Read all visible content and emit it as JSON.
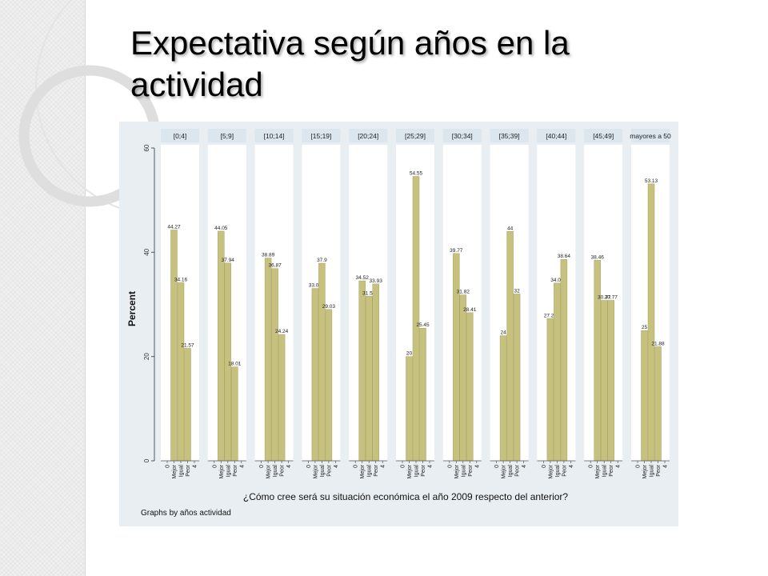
{
  "slide": {
    "title_line1": "Expectativa según años en la",
    "title_line2": "actividad"
  },
  "colors": {
    "chart_background": "#e8eef2",
    "bar": "#c7c17f",
    "bar_edge": "#a8a360",
    "panel_background": "#ffffff",
    "strip_background": "#dce6ee",
    "grid": "#e6ecf0"
  },
  "chart_data": {
    "type": "bar",
    "ylabel": "Percent",
    "xlabel": "¿Cómo cree será su situación económica el año 2009 respecto del anterior?",
    "note": "Graphs by años actividad",
    "ylim": [
      0,
      60
    ],
    "yticks": [
      0,
      20,
      40,
      60
    ],
    "categories": [
      "0",
      "Mejor",
      "Igual",
      "Peor",
      "4"
    ],
    "grid": false,
    "panels": [
      {
        "label": "[0;4]",
        "values": [
          null,
          44.27,
          34.16,
          21.57,
          null
        ],
        "labels": [
          "",
          "44.27",
          "34.16",
          "21.57",
          ""
        ]
      },
      {
        "label": "[5;9]",
        "values": [
          null,
          44.05,
          37.94,
          18.01,
          null
        ],
        "labels": [
          "",
          "44.05",
          "37.94",
          "18.01",
          ""
        ]
      },
      {
        "label": "[10;14]",
        "values": [
          null,
          38.89,
          36.87,
          24.24,
          null
        ],
        "labels": [
          "",
          "38.89",
          "36.87",
          "24.24",
          ""
        ]
      },
      {
        "label": "[15;19]",
        "values": [
          null,
          33.06,
          37.9,
          29.03,
          null
        ],
        "labels": [
          "",
          "33.06",
          "37.9",
          "29.03",
          ""
        ]
      },
      {
        "label": "[20;24]",
        "values": [
          null,
          34.52,
          31.55,
          33.93,
          null
        ],
        "labels": [
          "",
          "34.52",
          "31.55",
          "33.93",
          ""
        ]
      },
      {
        "label": "[25;29]",
        "values": [
          null,
          20,
          54.55,
          25.45,
          null
        ],
        "labels": [
          "",
          "20",
          "54.55",
          "25.45",
          ""
        ]
      },
      {
        "label": "[30;34]",
        "values": [
          null,
          39.77,
          31.82,
          28.41,
          null
        ],
        "labels": [
          "",
          "39.77",
          "31.82",
          "28.41",
          ""
        ]
      },
      {
        "label": "[35;39]",
        "values": [
          null,
          24,
          44,
          32,
          null
        ],
        "labels": [
          "",
          "24",
          "44",
          "32",
          ""
        ]
      },
      {
        "label": "[40;44]",
        "values": [
          null,
          27.27,
          34.09,
          38.64,
          null
        ],
        "labels": [
          "",
          "27.27",
          "34.09",
          "38.64",
          ""
        ]
      },
      {
        "label": "[45;49]",
        "values": [
          null,
          38.46,
          30.77,
          30.77,
          null
        ],
        "labels": [
          "",
          "38.46",
          "30.77",
          "30.77",
          ""
        ]
      },
      {
        "label": "mayores a 50",
        "values": [
          null,
          25,
          53.13,
          21.88,
          null
        ],
        "labels": [
          "",
          "25",
          "53.13",
          "21.88",
          ""
        ]
      }
    ]
  }
}
